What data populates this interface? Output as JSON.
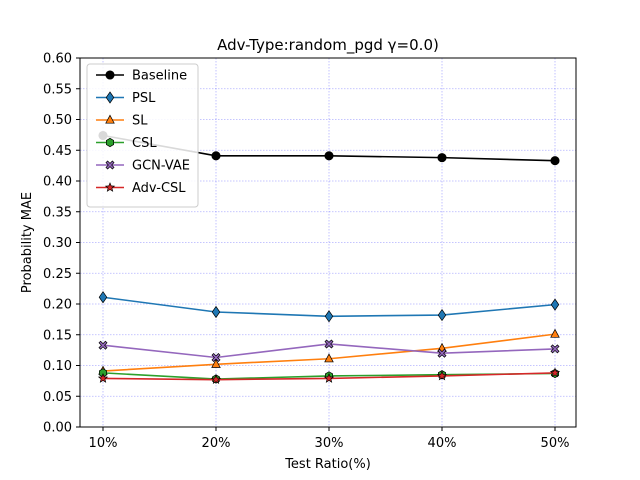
{
  "chart_data": {
    "type": "line",
    "title": "Adv-Type:random_pgd γ=0.0)",
    "xlabel": "Test Ratio(%)",
    "ylabel": "Probability MAE",
    "categories": [
      "10%",
      "20%",
      "30%",
      "40%",
      "50%"
    ],
    "ylim": [
      0.0,
      0.6
    ],
    "yticks": [
      "0.00",
      "0.05",
      "0.10",
      "0.15",
      "0.20",
      "0.25",
      "0.30",
      "0.35",
      "0.40",
      "0.45",
      "0.50",
      "0.55",
      "0.60"
    ],
    "grid": true,
    "legend_position": "top-left",
    "series": [
      {
        "name": "Baseline",
        "color": "#000000",
        "marker": "circle",
        "values": [
          0.474,
          0.441,
          0.441,
          0.438,
          0.433
        ]
      },
      {
        "name": "PSL",
        "color": "#1f77b4",
        "marker": "diamond",
        "values": [
          0.211,
          0.187,
          0.18,
          0.182,
          0.199
        ]
      },
      {
        "name": "SL",
        "color": "#ff7f0e",
        "marker": "triangle",
        "values": [
          0.091,
          0.102,
          0.111,
          0.128,
          0.151
        ]
      },
      {
        "name": "CSL",
        "color": "#2ca02c",
        "marker": "hexagon",
        "values": [
          0.088,
          0.078,
          0.083,
          0.085,
          0.087
        ]
      },
      {
        "name": "GCN-VAE",
        "color": "#9467bd",
        "marker": "x",
        "values": [
          0.133,
          0.113,
          0.135,
          0.12,
          0.127
        ]
      },
      {
        "name": "Adv-CSL",
        "color": "#d62728",
        "marker": "star",
        "values": [
          0.079,
          0.077,
          0.079,
          0.083,
          0.088
        ]
      }
    ]
  }
}
